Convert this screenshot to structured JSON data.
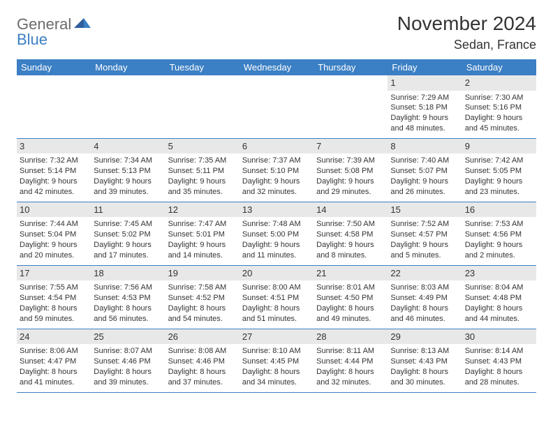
{
  "brand": {
    "word1": "General",
    "word2": "Blue"
  },
  "title": "November 2024",
  "location": "Sedan, France",
  "colors": {
    "header_bg": "#3b7fc4",
    "header_text": "#ffffff",
    "daynum_bg": "#e8e8e8",
    "border": "#3b7fc4",
    "text": "#333333",
    "logo_gray": "#6b6b6b",
    "logo_blue": "#3b7fc4"
  },
  "dayNames": [
    "Sunday",
    "Monday",
    "Tuesday",
    "Wednesday",
    "Thursday",
    "Friday",
    "Saturday"
  ],
  "weeks": [
    [
      {
        "n": "",
        "lines": []
      },
      {
        "n": "",
        "lines": []
      },
      {
        "n": "",
        "lines": []
      },
      {
        "n": "",
        "lines": []
      },
      {
        "n": "",
        "lines": []
      },
      {
        "n": "1",
        "lines": [
          "Sunrise: 7:29 AM",
          "Sunset: 5:18 PM",
          "Daylight: 9 hours and 48 minutes."
        ]
      },
      {
        "n": "2",
        "lines": [
          "Sunrise: 7:30 AM",
          "Sunset: 5:16 PM",
          "Daylight: 9 hours and 45 minutes."
        ]
      }
    ],
    [
      {
        "n": "3",
        "lines": [
          "Sunrise: 7:32 AM",
          "Sunset: 5:14 PM",
          "Daylight: 9 hours and 42 minutes."
        ]
      },
      {
        "n": "4",
        "lines": [
          "Sunrise: 7:34 AM",
          "Sunset: 5:13 PM",
          "Daylight: 9 hours and 39 minutes."
        ]
      },
      {
        "n": "5",
        "lines": [
          "Sunrise: 7:35 AM",
          "Sunset: 5:11 PM",
          "Daylight: 9 hours and 35 minutes."
        ]
      },
      {
        "n": "6",
        "lines": [
          "Sunrise: 7:37 AM",
          "Sunset: 5:10 PM",
          "Daylight: 9 hours and 32 minutes."
        ]
      },
      {
        "n": "7",
        "lines": [
          "Sunrise: 7:39 AM",
          "Sunset: 5:08 PM",
          "Daylight: 9 hours and 29 minutes."
        ]
      },
      {
        "n": "8",
        "lines": [
          "Sunrise: 7:40 AM",
          "Sunset: 5:07 PM",
          "Daylight: 9 hours and 26 minutes."
        ]
      },
      {
        "n": "9",
        "lines": [
          "Sunrise: 7:42 AM",
          "Sunset: 5:05 PM",
          "Daylight: 9 hours and 23 minutes."
        ]
      }
    ],
    [
      {
        "n": "10",
        "lines": [
          "Sunrise: 7:44 AM",
          "Sunset: 5:04 PM",
          "Daylight: 9 hours and 20 minutes."
        ]
      },
      {
        "n": "11",
        "lines": [
          "Sunrise: 7:45 AM",
          "Sunset: 5:02 PM",
          "Daylight: 9 hours and 17 minutes."
        ]
      },
      {
        "n": "12",
        "lines": [
          "Sunrise: 7:47 AM",
          "Sunset: 5:01 PM",
          "Daylight: 9 hours and 14 minutes."
        ]
      },
      {
        "n": "13",
        "lines": [
          "Sunrise: 7:48 AM",
          "Sunset: 5:00 PM",
          "Daylight: 9 hours and 11 minutes."
        ]
      },
      {
        "n": "14",
        "lines": [
          "Sunrise: 7:50 AM",
          "Sunset: 4:58 PM",
          "Daylight: 9 hours and 8 minutes."
        ]
      },
      {
        "n": "15",
        "lines": [
          "Sunrise: 7:52 AM",
          "Sunset: 4:57 PM",
          "Daylight: 9 hours and 5 minutes."
        ]
      },
      {
        "n": "16",
        "lines": [
          "Sunrise: 7:53 AM",
          "Sunset: 4:56 PM",
          "Daylight: 9 hours and 2 minutes."
        ]
      }
    ],
    [
      {
        "n": "17",
        "lines": [
          "Sunrise: 7:55 AM",
          "Sunset: 4:54 PM",
          "Daylight: 8 hours and 59 minutes."
        ]
      },
      {
        "n": "18",
        "lines": [
          "Sunrise: 7:56 AM",
          "Sunset: 4:53 PM",
          "Daylight: 8 hours and 56 minutes."
        ]
      },
      {
        "n": "19",
        "lines": [
          "Sunrise: 7:58 AM",
          "Sunset: 4:52 PM",
          "Daylight: 8 hours and 54 minutes."
        ]
      },
      {
        "n": "20",
        "lines": [
          "Sunrise: 8:00 AM",
          "Sunset: 4:51 PM",
          "Daylight: 8 hours and 51 minutes."
        ]
      },
      {
        "n": "21",
        "lines": [
          "Sunrise: 8:01 AM",
          "Sunset: 4:50 PM",
          "Daylight: 8 hours and 49 minutes."
        ]
      },
      {
        "n": "22",
        "lines": [
          "Sunrise: 8:03 AM",
          "Sunset: 4:49 PM",
          "Daylight: 8 hours and 46 minutes."
        ]
      },
      {
        "n": "23",
        "lines": [
          "Sunrise: 8:04 AM",
          "Sunset: 4:48 PM",
          "Daylight: 8 hours and 44 minutes."
        ]
      }
    ],
    [
      {
        "n": "24",
        "lines": [
          "Sunrise: 8:06 AM",
          "Sunset: 4:47 PM",
          "Daylight: 8 hours and 41 minutes."
        ]
      },
      {
        "n": "25",
        "lines": [
          "Sunrise: 8:07 AM",
          "Sunset: 4:46 PM",
          "Daylight: 8 hours and 39 minutes."
        ]
      },
      {
        "n": "26",
        "lines": [
          "Sunrise: 8:08 AM",
          "Sunset: 4:46 PM",
          "Daylight: 8 hours and 37 minutes."
        ]
      },
      {
        "n": "27",
        "lines": [
          "Sunrise: 8:10 AM",
          "Sunset: 4:45 PM",
          "Daylight: 8 hours and 34 minutes."
        ]
      },
      {
        "n": "28",
        "lines": [
          "Sunrise: 8:11 AM",
          "Sunset: 4:44 PM",
          "Daylight: 8 hours and 32 minutes."
        ]
      },
      {
        "n": "29",
        "lines": [
          "Sunrise: 8:13 AM",
          "Sunset: 4:43 PM",
          "Daylight: 8 hours and 30 minutes."
        ]
      },
      {
        "n": "30",
        "lines": [
          "Sunrise: 8:14 AM",
          "Sunset: 4:43 PM",
          "Daylight: 8 hours and 28 minutes."
        ]
      }
    ]
  ]
}
